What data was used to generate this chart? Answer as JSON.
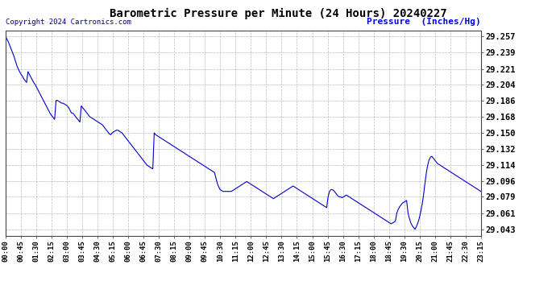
{
  "title": "Barometric Pressure per Minute (24 Hours) 20240227",
  "copyright_text": "Copyright 2024 Cartronics.com",
  "ylabel": "Pressure  (Inches/Hg)",
  "title_color": "#000000",
  "line_color": "#0000cc",
  "background_color": "#ffffff",
  "grid_color": "#aaaaaa",
  "ylabel_color": "#0000ee",
  "copyright_color": "#000080",
  "yticks": [
    29.043,
    29.061,
    29.079,
    29.096,
    29.114,
    29.132,
    29.15,
    29.168,
    29.186,
    29.204,
    29.221,
    29.239,
    29.257
  ],
  "ylim": [
    29.036,
    29.264
  ],
  "x_tick_labels": [
    "00:00",
    "00:45",
    "01:30",
    "02:15",
    "03:00",
    "03:45",
    "04:30",
    "05:15",
    "06:00",
    "06:45",
    "07:30",
    "08:15",
    "09:00",
    "09:45",
    "10:30",
    "11:15",
    "12:00",
    "12:45",
    "13:30",
    "14:15",
    "15:00",
    "15:45",
    "16:30",
    "17:15",
    "18:00",
    "18:45",
    "19:30",
    "20:15",
    "21:00",
    "21:45",
    "22:30",
    "23:15"
  ],
  "pressure_data": [
    29.257,
    29.254,
    29.251,
    29.247,
    29.243,
    29.239,
    29.235,
    29.23,
    29.225,
    29.221,
    29.218,
    29.215,
    29.213,
    29.21,
    29.208,
    29.206,
    29.218,
    29.215,
    29.212,
    29.209,
    29.206,
    29.204,
    29.201,
    29.198,
    29.195,
    29.192,
    29.189,
    29.186,
    29.183,
    29.18,
    29.177,
    29.174,
    29.171,
    29.169,
    29.167,
    29.165,
    29.186,
    29.186,
    29.185,
    29.184,
    29.183,
    29.183,
    29.182,
    29.181,
    29.18,
    29.178,
    29.175,
    29.172,
    29.172,
    29.17,
    29.168,
    29.166,
    29.164,
    29.162,
    29.18,
    29.178,
    29.176,
    29.174,
    29.172,
    29.17,
    29.168,
    29.167,
    29.166,
    29.165,
    29.164,
    29.163,
    29.162,
    29.161,
    29.16,
    29.159,
    29.157,
    29.155,
    29.153,
    29.151,
    29.149,
    29.148,
    29.15,
    29.151,
    29.152,
    29.153,
    29.153,
    29.152,
    29.151,
    29.15,
    29.148,
    29.146,
    29.144,
    29.142,
    29.14,
    29.138,
    29.136,
    29.134,
    29.132,
    29.13,
    29.128,
    29.126,
    29.124,
    29.122,
    29.12,
    29.118,
    29.116,
    29.114,
    29.113,
    29.112,
    29.111,
    29.11,
    29.15,
    29.148,
    29.147,
    29.146,
    29.145,
    29.144,
    29.143,
    29.142,
    29.141,
    29.14,
    29.139,
    29.138,
    29.137,
    29.136,
    29.135,
    29.134,
    29.133,
    29.132,
    29.131,
    29.13,
    29.129,
    29.128,
    29.127,
    29.126,
    29.125,
    29.124,
    29.123,
    29.122,
    29.121,
    29.12,
    29.119,
    29.118,
    29.117,
    29.116,
    29.115,
    29.114,
    29.113,
    29.112,
    29.111,
    29.11,
    29.109,
    29.108,
    29.107,
    29.106,
    29.1,
    29.094,
    29.09,
    29.087,
    29.086,
    29.085,
    29.085,
    29.085,
    29.085,
    29.085,
    29.085,
    29.085,
    29.086,
    29.087,
    29.088,
    29.089,
    29.09,
    29.091,
    29.092,
    29.093,
    29.094,
    29.095,
    29.096,
    29.095,
    29.094,
    29.093,
    29.092,
    29.091,
    29.09,
    29.089,
    29.088,
    29.087,
    29.086,
    29.085,
    29.084,
    29.083,
    29.082,
    29.081,
    29.08,
    29.079,
    29.078,
    29.077,
    29.078,
    29.079,
    29.08,
    29.081,
    29.082,
    29.083,
    29.084,
    29.085,
    29.086,
    29.087,
    29.088,
    29.089,
    29.09,
    29.091,
    29.09,
    29.089,
    29.088,
    29.087,
    29.086,
    29.085,
    29.084,
    29.083,
    29.082,
    29.081,
    29.08,
    29.079,
    29.078,
    29.077,
    29.076,
    29.075,
    29.074,
    29.073,
    29.072,
    29.071,
    29.07,
    29.069,
    29.068,
    29.067,
    29.079,
    29.085,
    29.087,
    29.087,
    29.086,
    29.084,
    29.082,
    29.08,
    29.079,
    29.079,
    29.078,
    29.079,
    29.08,
    29.081,
    29.08,
    29.079,
    29.078,
    29.077,
    29.076,
    29.075,
    29.074,
    29.073,
    29.072,
    29.071,
    29.07,
    29.069,
    29.068,
    29.067,
    29.066,
    29.065,
    29.064,
    29.063,
    29.062,
    29.061,
    29.06,
    29.059,
    29.058,
    29.057,
    29.056,
    29.055,
    29.054,
    29.053,
    29.052,
    29.051,
    29.05,
    29.049,
    29.05,
    29.051,
    29.052,
    29.061,
    29.065,
    29.068,
    29.07,
    29.072,
    29.073,
    29.074,
    29.075,
    29.061,
    29.055,
    29.05,
    29.047,
    29.045,
    29.043,
    29.046,
    29.05,
    29.055,
    29.062,
    29.07,
    29.08,
    29.093,
    29.105,
    29.114,
    29.12,
    29.123,
    29.124,
    29.122,
    29.12,
    29.118,
    29.116,
    29.115,
    29.114,
    29.113,
    29.112,
    29.111,
    29.11,
    29.109,
    29.108,
    29.107,
    29.106,
    29.105,
    29.104,
    29.103,
    29.102,
    29.101,
    29.1,
    29.099,
    29.098,
    29.097,
    29.096,
    29.095,
    29.094,
    29.093,
    29.092,
    29.091,
    29.09,
    29.089,
    29.088,
    29.087,
    29.086,
    29.085
  ]
}
